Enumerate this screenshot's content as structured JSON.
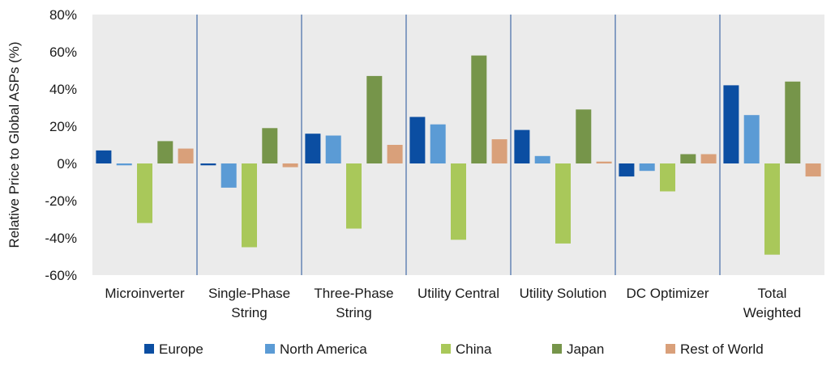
{
  "chart_data": {
    "type": "bar",
    "ylabel": "Relative Price to Global ASPs (%)",
    "ylim": [
      -60,
      80
    ],
    "yticks": [
      80,
      60,
      40,
      20,
      0,
      -20,
      -40,
      -60
    ],
    "ytick_labels": [
      "80%",
      "60%",
      "40%",
      "20%",
      "0%",
      "-20%",
      "-40%",
      "-60%"
    ],
    "categories": [
      [
        "Microinverter"
      ],
      [
        "Single-Phase",
        "String"
      ],
      [
        "Three-Phase",
        "String"
      ],
      [
        "Utility Central"
      ],
      [
        "Utility Solution"
      ],
      [
        "DC Optimizer"
      ],
      [
        "Total",
        "Weighted"
      ]
    ],
    "series": [
      {
        "name": "Europe",
        "color": "#0b4ea2",
        "values": [
          7,
          -1,
          16,
          25,
          18,
          -7,
          42
        ]
      },
      {
        "name": "North America",
        "color": "#5b9bd5",
        "values": [
          -1,
          -13,
          15,
          21,
          4,
          -4,
          26
        ]
      },
      {
        "name": "China",
        "color": "#a9c85a",
        "values": [
          -32,
          -45,
          -35,
          -41,
          -43,
          -15,
          -49
        ]
      },
      {
        "name": "Japan",
        "color": "#76954a",
        "values": [
          12,
          19,
          47,
          58,
          29,
          5,
          44
        ]
      },
      {
        "name": "Rest of World",
        "color": "#d9a07a",
        "values": [
          8,
          -2,
          10,
          13,
          1,
          5,
          -7
        ]
      }
    ],
    "grid": false,
    "legend_position": "bottom",
    "plot_background": "#ebebeb",
    "separator_color": "#4f74ad"
  }
}
